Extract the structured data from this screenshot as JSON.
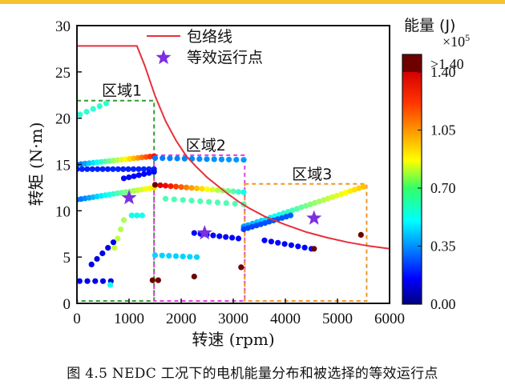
{
  "colors": {
    "top_bar": "#f4c430",
    "envelope": "#e8303a",
    "star": "#7b2fe0",
    "region1": "#2e9e2e",
    "region2": "#e040e0",
    "region3": "#f0952c",
    "colorbar_over": "#6e0000"
  },
  "chart_data": {
    "type": "scatter",
    "xlabel": "转速 (rpm)",
    "ylabel": "转矩 (N·m)",
    "xlim": [
      0,
      6000
    ],
    "ylim": [
      0,
      30
    ],
    "xticks": [
      "0",
      "1000",
      "2000",
      "3000",
      "4000",
      "5000",
      "6000"
    ],
    "yticks": [
      "0",
      "5",
      "10",
      "15",
      "20",
      "25",
      "30"
    ],
    "grid": false,
    "legend_position": "top-center",
    "legend": [
      "包络线",
      "等效运行点"
    ],
    "colorbar": {
      "label": "能量 (J)",
      "multiplier": "×10",
      "multiplier_exp": "5",
      "over_label": ">1.40",
      "range": [
        0,
        1.4
      ],
      "ticks": [
        "0.00",
        "0.35",
        "0.70",
        "1.05",
        "1.40"
      ],
      "colormap": "jet"
    },
    "envelope": {
      "name": "包络线",
      "x": [
        0,
        1150,
        1300,
        1500,
        1700,
        1900,
        2100,
        2300,
        2500,
        2700,
        2900,
        3100,
        3300,
        3600,
        4000,
        4400,
        4800,
        5200,
        5600,
        6000
      ],
      "y": [
        27.8,
        27.8,
        25.7,
        22.4,
        19.7,
        17.6,
        15.9,
        14.7,
        13.6,
        12.7,
        11.8,
        11.0,
        10.3,
        9.4,
        8.5,
        7.7,
        7.1,
        6.6,
        6.2,
        5.9
      ]
    },
    "equivalent_points": {
      "name": "等效运行点",
      "x": [
        1000,
        2450,
        4550
      ],
      "y": [
        11.4,
        7.6,
        9.2
      ]
    },
    "regions": [
      {
        "label": "区域1",
        "x": [
          0,
          1480
        ],
        "y": [
          0,
          21.9
        ]
      },
      {
        "label": "区域2",
        "x": [
          1480,
          3220
        ],
        "y": [
          0,
          16.0
        ]
      },
      {
        "label": "区域3",
        "x": [
          3220,
          5560
        ],
        "y": [
          0,
          12.9
        ]
      }
    ],
    "point_groups": [
      {
        "x0": 60,
        "x1": 560,
        "y0": 20.4,
        "y1": 21.6,
        "e0": 0.55,
        "e1": 0.55,
        "n": 5
      },
      {
        "x0": 0,
        "x1": 1480,
        "y0": 15.0,
        "y1": 15.9,
        "e0": 0.2,
        "e1": 1.3,
        "n": 20
      },
      {
        "x0": 0,
        "x1": 1480,
        "y0": 14.5,
        "y1": 14.5,
        "e0": 0.1,
        "e1": 0.1,
        "n": 16
      },
      {
        "x0": 0,
        "x1": 1480,
        "y0": 11.2,
        "y1": 12.5,
        "e0": 0.2,
        "e1": 0.95,
        "n": 20
      },
      {
        "x0": 900,
        "x1": 1480,
        "y0": 13.5,
        "y1": 14.2,
        "e0": 0.05,
        "e1": 0.05,
        "n": 7
      },
      {
        "x0": 1500,
        "x1": 3200,
        "y0": 15.7,
        "y1": 15.5,
        "e0": 0.25,
        "e1": 0.3,
        "n": 13
      },
      {
        "x0": 1500,
        "x1": 3200,
        "y0": 12.8,
        "y1": 12.0,
        "e0": 1.45,
        "e1": 0.5,
        "n": 18
      },
      {
        "x0": 1700,
        "x1": 3200,
        "y0": 11.3,
        "y1": 10.7,
        "e0": 0.6,
        "e1": 0.6,
        "n": 10
      },
      {
        "x0": 1500,
        "x1": 2300,
        "y0": 5.2,
        "y1": 5.0,
        "e0": 0.4,
        "e1": 0.4,
        "n": 7
      },
      {
        "x0": 2250,
        "x1": 3100,
        "y0": 7.6,
        "y1": 7.0,
        "e0": 0.05,
        "e1": 0.05,
        "n": 8
      },
      {
        "x0": 3200,
        "x1": 5500,
        "y0": 8.3,
        "y1": 12.6,
        "e0": 0.3,
        "e1": 1.0,
        "n": 28
      },
      {
        "x0": 3200,
        "x1": 4100,
        "y0": 8.0,
        "y1": 9.5,
        "e0": 0.15,
        "e1": 0.2,
        "n": 12
      },
      {
        "x0": 3600,
        "x1": 4500,
        "y0": 6.8,
        "y1": 5.9,
        "e0": 0.05,
        "e1": 0.05,
        "n": 8
      },
      {
        "x0": 50,
        "x1": 650,
        "y0": 2.4,
        "y1": 2.4,
        "e0": 0.0,
        "e1": 0.0,
        "n": 5
      },
      {
        "x0": 280,
        "x1": 700,
        "y0": 4.2,
        "y1": 6.6,
        "e0": 0.0,
        "e1": 0.0,
        "n": 5
      },
      {
        "x0": 720,
        "x1": 900,
        "y0": 6.0,
        "y1": 9.0,
        "e0": 0.8,
        "e1": 0.75,
        "n": 4
      },
      {
        "x0": 1050,
        "x1": 1250,
        "y0": 9.5,
        "y1": 9.5,
        "e0": 0.5,
        "e1": 0.5,
        "n": 3
      },
      {
        "x0": 640,
        "x1": 640,
        "y0": 2.0,
        "y1": 2.0,
        "e0": 0.5,
        "e1": 0.5,
        "n": 1
      },
      {
        "x0": 1450,
        "x1": 1560,
        "y0": 2.5,
        "y1": 2.5,
        "e0": 1.6,
        "e1": 1.6,
        "n": 2
      },
      {
        "x0": 2250,
        "x1": 2250,
        "y0": 2.9,
        "y1": 2.9,
        "e0": 1.6,
        "e1": 1.6,
        "n": 1
      },
      {
        "x0": 3150,
        "x1": 3150,
        "y0": 3.9,
        "y1": 3.9,
        "e0": 1.6,
        "e1": 1.6,
        "n": 1
      },
      {
        "x0": 4550,
        "x1": 4550,
        "y0": 5.9,
        "y1": 5.9,
        "e0": 1.6,
        "e1": 1.6,
        "n": 1
      },
      {
        "x0": 5450,
        "x1": 5450,
        "y0": 7.4,
        "y1": 7.4,
        "e0": 1.6,
        "e1": 1.6,
        "n": 1
      }
    ]
  },
  "caption": "图 4.5 NEDC 工况下的电机能量分布和被选择的等效运行点"
}
